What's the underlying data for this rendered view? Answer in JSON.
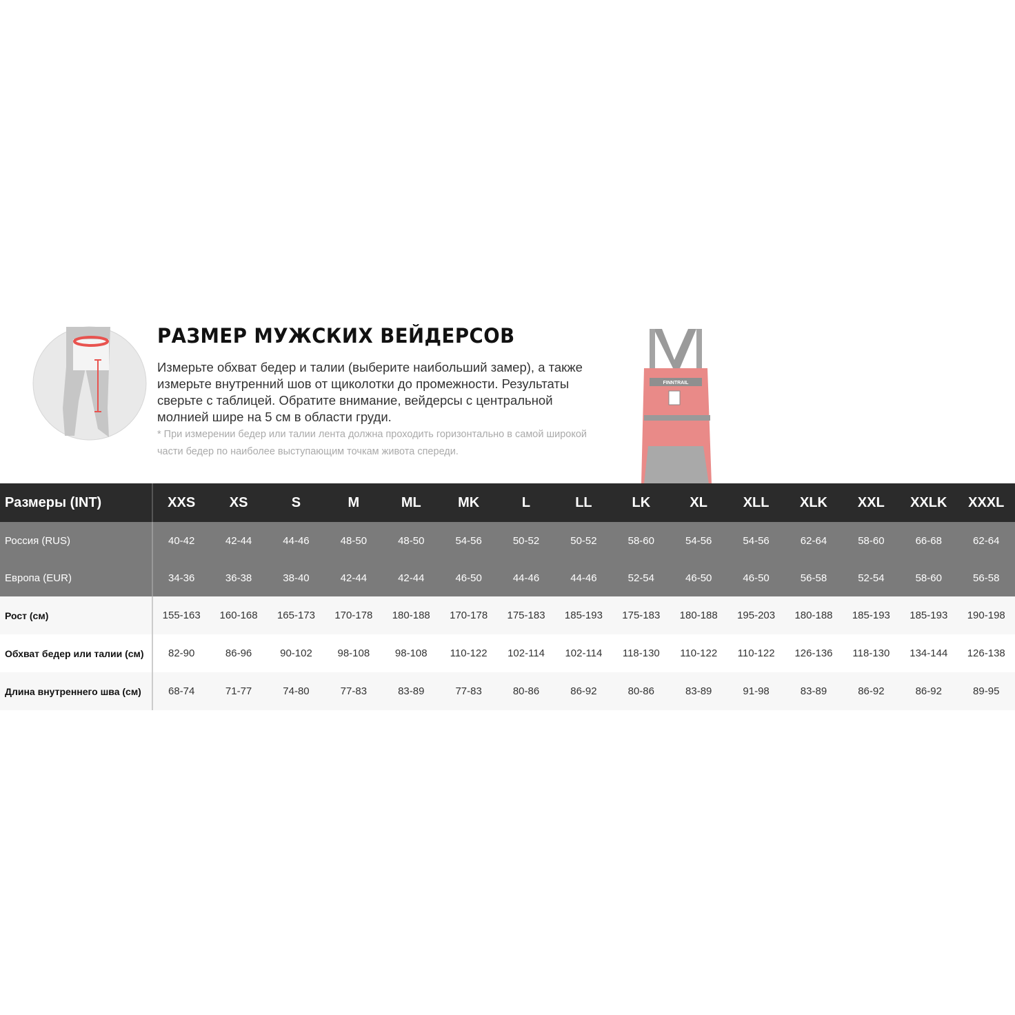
{
  "header": {
    "title": "РАЗМЕР МУЖСКИХ ВЕЙДЕРСОВ",
    "description": "Измерьте обхват бедер и талии (выберите наибольший замер), а также измерьте внутренний шов от щиколотки до промежности. Результаты сверьте с таблицей. Обратите внимание, вейдерсы с центральной молнией шире на 5 см в области груди.",
    "footnote": "* При измерении бедер или талии лента должна проходить горизонтально в самой широкой части бедер по наиболее выступающим точкам живота спереди."
  },
  "images": {
    "measure_illustration": "leg-measurement-icon",
    "product": "waders-product-image",
    "product_logo_text": "FINNTRAIL"
  },
  "colors": {
    "header_bg": "#2b2b2b",
    "grey_rows_bg": "#7b7b7b",
    "accent": "#e8534f"
  },
  "table": {
    "header_label": "Размеры (INT)",
    "sizes": [
      "XXS",
      "XS",
      "S",
      "M",
      "ML",
      "MK",
      "L",
      "LL",
      "LK",
      "XL",
      "XLL",
      "XLK",
      "XXL",
      "XXLK",
      "XXXL"
    ],
    "rows": [
      {
        "label": "Россия (RUS)",
        "style": "grey",
        "values": [
          "40-42",
          "42-44",
          "44-46",
          "48-50",
          "48-50",
          "54-56",
          "50-52",
          "50-52",
          "58-60",
          "54-56",
          "54-56",
          "62-64",
          "58-60",
          "66-68",
          "62-64"
        ]
      },
      {
        "label": "Европа (EUR)",
        "style": "grey",
        "values": [
          "34-36",
          "36-38",
          "38-40",
          "42-44",
          "42-44",
          "46-50",
          "44-46",
          "44-46",
          "52-54",
          "46-50",
          "46-50",
          "56-58",
          "52-54",
          "58-60",
          "56-58"
        ]
      },
      {
        "label": "Рост (см)",
        "style": "light",
        "values": [
          "155-163",
          "160-168",
          "165-173",
          "170-178",
          "180-188",
          "170-178",
          "175-183",
          "185-193",
          "175-183",
          "180-188",
          "195-203",
          "180-188",
          "185-193",
          "185-193",
          "190-198"
        ]
      },
      {
        "label": "Обхват бедер или талии (см)",
        "style": "white",
        "values": [
          "82-90",
          "86-96",
          "90-102",
          "98-108",
          "98-108",
          "110-122",
          "102-114",
          "102-114",
          "118-130",
          "110-122",
          "110-122",
          "126-136",
          "118-130",
          "134-144",
          "126-138"
        ]
      },
      {
        "label": "Длина внутреннего шва (см)",
        "style": "light",
        "values": [
          "68-74",
          "71-77",
          "74-80",
          "77-83",
          "83-89",
          "77-83",
          "80-86",
          "86-92",
          "80-86",
          "83-89",
          "91-98",
          "83-89",
          "86-92",
          "86-92",
          "89-95"
        ]
      }
    ]
  }
}
